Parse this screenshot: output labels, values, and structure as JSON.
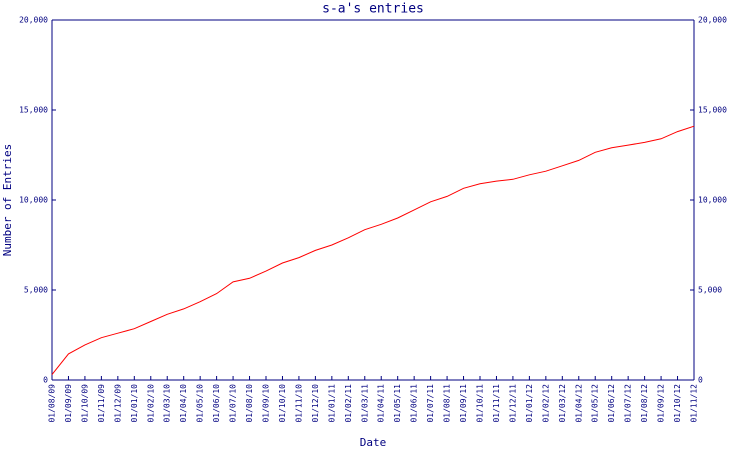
{
  "chart_data": {
    "type": "line",
    "title": "s-a's entries",
    "x_label": "Date",
    "y_label": "Number of Entries",
    "categories": [
      "01/08/09",
      "01/09/09",
      "01/10/09",
      "01/11/09",
      "01/12/09",
      "01/01/10",
      "01/02/10",
      "01/03/10",
      "01/04/10",
      "01/05/10",
      "01/06/10",
      "01/07/10",
      "01/08/10",
      "01/09/10",
      "01/10/10",
      "01/11/10",
      "01/12/10",
      "01/01/11",
      "01/02/11",
      "01/03/11",
      "01/04/11",
      "01/05/11",
      "01/06/11",
      "01/07/11",
      "01/08/11",
      "01/09/11",
      "01/10/11",
      "01/11/11",
      "01/12/11",
      "01/01/12",
      "01/02/12",
      "01/03/12",
      "01/04/12",
      "01/05/12",
      "01/06/12",
      "01/07/12",
      "01/08/12",
      "01/09/12",
      "01/10/12",
      "01/11/12"
    ],
    "values": [
      300,
      1450,
      1950,
      2350,
      2600,
      2850,
      3250,
      3650,
      3950,
      4350,
      4800,
      5450,
      5650,
      6050,
      6500,
      6800,
      7200,
      7500,
      7900,
      8350,
      8650,
      9000,
      9450,
      9900,
      10200,
      10650,
      10900,
      11050,
      11150,
      11400,
      11600,
      11900,
      12200,
      12650,
      12900,
      13050,
      13200,
      13400,
      13800,
      14100
    ],
    "color": "#ff0000",
    "ylim": [
      0,
      20000
    ],
    "yticks": [
      0,
      {
        "value": 5000,
        "label": "5,000"
      },
      {
        "value": 10000,
        "label": "10,000"
      },
      {
        "value": 15000,
        "label": "15,000"
      },
      {
        "value": 20000,
        "label": "20,000"
      }
    ],
    "y2lim": [
      0,
      20000
    ],
    "y2ticks": [
      0,
      {
        "value": 5000,
        "label": "5,000"
      },
      {
        "value": 10000,
        "label": "10,000"
      },
      {
        "value": 15000,
        "label": "15,000"
      },
      {
        "value": 20000,
        "label": "20,000"
      }
    ],
    "grid": false
  }
}
